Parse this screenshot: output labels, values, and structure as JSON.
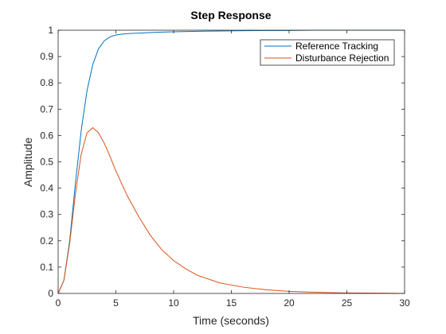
{
  "chart_data": {
    "type": "line",
    "title": "Step Response",
    "xlabel": "Time (seconds)",
    "ylabel": "Amplitude",
    "xlim": [
      0,
      30
    ],
    "ylim": [
      0,
      1
    ],
    "xticks": [
      0,
      5,
      10,
      15,
      20,
      25,
      30
    ],
    "yticks": [
      0,
      0.1,
      0.2,
      0.3,
      0.4,
      0.5,
      0.6,
      0.7,
      0.8,
      0.9,
      1
    ],
    "grid": false,
    "legend_position": "top-right",
    "series": [
      {
        "name": "Reference Tracking",
        "color": "#0072BD",
        "x": [
          0,
          0.5,
          1,
          1.5,
          2,
          2.5,
          3,
          3.5,
          4,
          4.5,
          5,
          5.5,
          6,
          7,
          8,
          9,
          10,
          12,
          14,
          16,
          18,
          20,
          22,
          25,
          30
        ],
        "y": [
          0,
          0.05,
          0.2,
          0.42,
          0.62,
          0.77,
          0.87,
          0.93,
          0.96,
          0.975,
          0.982,
          0.985,
          0.987,
          0.989,
          0.991,
          0.993,
          0.994,
          0.996,
          0.997,
          0.998,
          0.999,
          0.999,
          1.0,
          1.0,
          1.0
        ]
      },
      {
        "name": "Disturbance Rejection",
        "color": "#D95319",
        "x": [
          0,
          0.5,
          1,
          1.5,
          2,
          2.5,
          3,
          3.5,
          4,
          4.5,
          5,
          6,
          7,
          8,
          9,
          10,
          11,
          12,
          14,
          16,
          18,
          20,
          22,
          25,
          28,
          30
        ],
        "y": [
          0,
          0.05,
          0.19,
          0.38,
          0.53,
          0.61,
          0.63,
          0.61,
          0.57,
          0.52,
          0.465,
          0.37,
          0.29,
          0.22,
          0.165,
          0.125,
          0.095,
          0.07,
          0.04,
          0.024,
          0.014,
          0.008,
          0.005,
          0.002,
          0.001,
          0.0
        ]
      }
    ]
  }
}
